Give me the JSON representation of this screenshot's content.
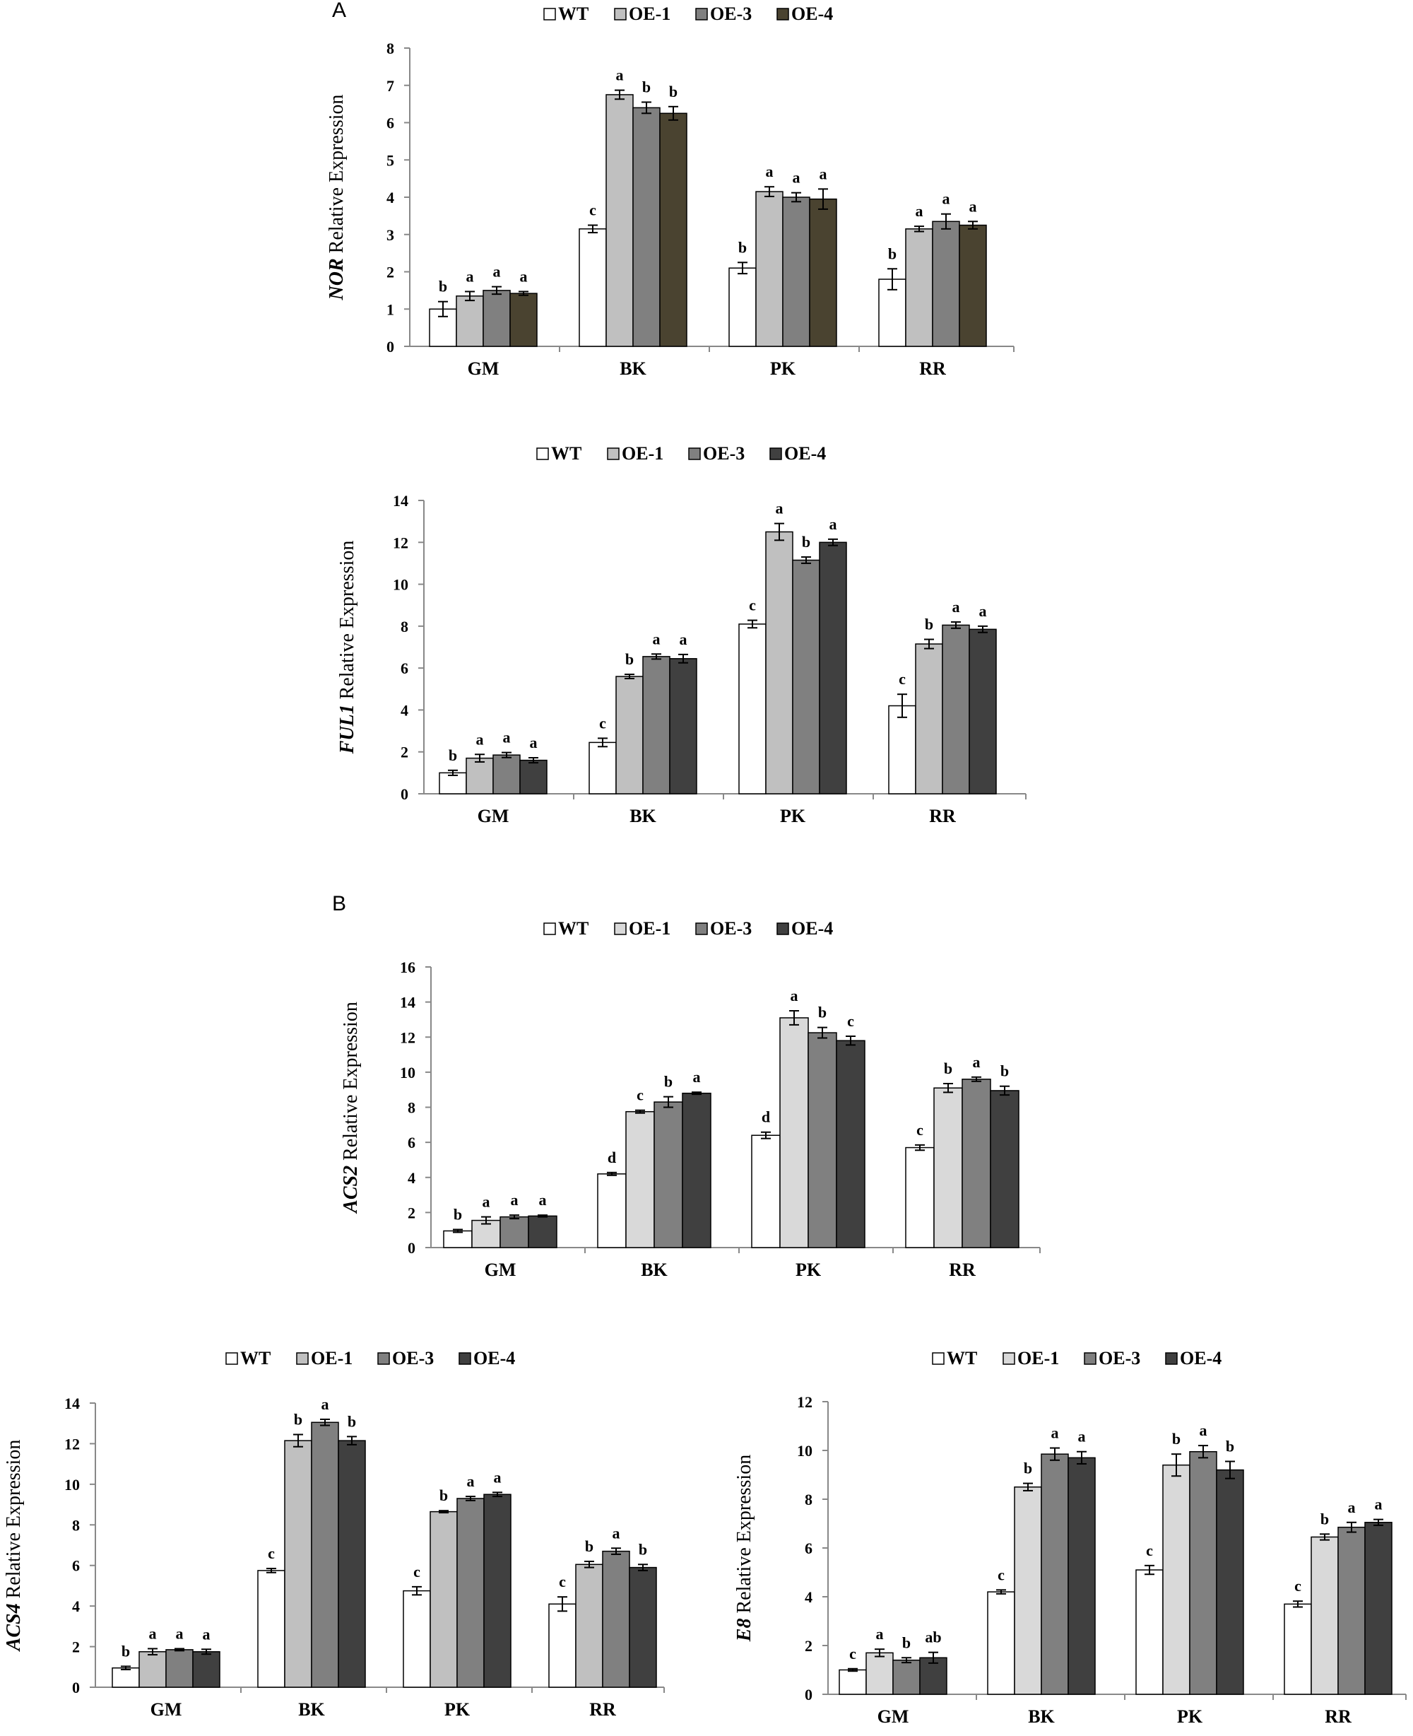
{
  "panel_labels": [
    "A",
    "B"
  ],
  "colors": {
    "WT": "#ffffff",
    "OE-1": "#c0c0c0",
    "OE-3": "#808080",
    "OE-4_dark_olive": "#4a4330",
    "OE-4": "#404040",
    "axis": "#888888"
  },
  "chart_data": [
    {
      "type": "bar",
      "gene": "NOR",
      "ylabel_suffix": " Relative Expression",
      "categories": [
        "GM",
        "BK",
        "PK",
        "RR"
      ],
      "legend": [
        "WT",
        "OE-1",
        "OE-3",
        "OE-4"
      ],
      "ylim": [
        0,
        8
      ],
      "yticks": [
        0,
        1,
        2,
        3,
        4,
        5,
        6,
        7,
        8
      ],
      "series": [
        {
          "name": "WT",
          "color": "#ffffff",
          "values": [
            1.0,
            3.15,
            2.1,
            1.8
          ],
          "errors": [
            0.2,
            0.1,
            0.15,
            0.28
          ],
          "letters": [
            "b",
            "c",
            "b",
            "b"
          ]
        },
        {
          "name": "OE-1",
          "color": "#c0c0c0",
          "values": [
            1.35,
            6.75,
            4.15,
            3.15
          ],
          "errors": [
            0.12,
            0.12,
            0.13,
            0.07
          ],
          "letters": [
            "a",
            "a",
            "a",
            "a"
          ]
        },
        {
          "name": "OE-3",
          "color": "#808080",
          "values": [
            1.5,
            6.4,
            4.0,
            3.35
          ],
          "errors": [
            0.1,
            0.15,
            0.12,
            0.2
          ],
          "letters": [
            "a",
            "b",
            "a",
            "a"
          ]
        },
        {
          "name": "OE-4",
          "color": "#4a4330",
          "values": [
            1.42,
            6.25,
            3.95,
            3.25
          ],
          "errors": [
            0.05,
            0.18,
            0.27,
            0.1
          ],
          "letters": [
            "a",
            "b",
            "a",
            "a"
          ]
        }
      ]
    },
    {
      "type": "bar",
      "gene": "FUL1",
      "ylabel_suffix": " Relative Expression",
      "categories": [
        "GM",
        "BK",
        "PK",
        "RR"
      ],
      "legend": [
        "WT",
        "OE-1",
        "OE-3",
        "OE-4"
      ],
      "ylim": [
        0,
        14
      ],
      "yticks": [
        0,
        2,
        4,
        6,
        8,
        10,
        12,
        14
      ],
      "series": [
        {
          "name": "WT",
          "color": "#ffffff",
          "values": [
            1.0,
            2.45,
            8.1,
            4.2
          ],
          "errors": [
            0.12,
            0.2,
            0.18,
            0.55
          ],
          "letters": [
            "b",
            "c",
            "c",
            "c"
          ]
        },
        {
          "name": "OE-1",
          "color": "#c0c0c0",
          "values": [
            1.7,
            5.6,
            12.5,
            7.15
          ],
          "errors": [
            0.18,
            0.1,
            0.4,
            0.22
          ],
          "letters": [
            "a",
            "b",
            "a",
            "b"
          ]
        },
        {
          "name": "OE-3",
          "color": "#808080",
          "values": [
            1.85,
            6.55,
            11.15,
            8.05
          ],
          "errors": [
            0.12,
            0.12,
            0.15,
            0.15
          ],
          "letters": [
            "a",
            "a",
            "b",
            "a"
          ]
        },
        {
          "name": "OE-4",
          "color": "#404040",
          "values": [
            1.6,
            6.45,
            12.0,
            7.85
          ],
          "errors": [
            0.12,
            0.2,
            0.15,
            0.15
          ],
          "letters": [
            "a",
            "a",
            "a",
            "a"
          ]
        }
      ]
    },
    {
      "type": "bar",
      "gene": "ACS2",
      "ylabel_suffix": " Relative Expression",
      "categories": [
        "GM",
        "BK",
        "PK",
        "RR"
      ],
      "legend": [
        "WT",
        "OE-1",
        "OE-3",
        "OE-4"
      ],
      "ylim": [
        0,
        16
      ],
      "yticks": [
        0,
        2,
        4,
        6,
        8,
        10,
        12,
        14,
        16
      ],
      "series": [
        {
          "name": "WT",
          "color": "#ffffff",
          "values": [
            0.95,
            4.2,
            6.4,
            5.7
          ],
          "errors": [
            0.08,
            0.08,
            0.18,
            0.15
          ],
          "letters": [
            "b",
            "d",
            "d",
            "c"
          ]
        },
        {
          "name": "OE-1",
          "color": "#d9d9d9",
          "values": [
            1.55,
            7.75,
            13.1,
            9.1
          ],
          "errors": [
            0.2,
            0.08,
            0.4,
            0.25
          ],
          "letters": [
            "a",
            "c",
            "a",
            "b"
          ]
        },
        {
          "name": "OE-3",
          "color": "#808080",
          "values": [
            1.75,
            8.3,
            12.25,
            9.6
          ],
          "errors": [
            0.1,
            0.3,
            0.3,
            0.12
          ],
          "letters": [
            "a",
            "b",
            "b",
            "a"
          ]
        },
        {
          "name": "OE-4",
          "color": "#404040",
          "values": [
            1.8,
            8.8,
            11.8,
            8.95
          ],
          "errors": [
            0.05,
            0.06,
            0.25,
            0.25
          ],
          "letters": [
            "a",
            "a",
            "c",
            "b"
          ]
        }
      ]
    },
    {
      "type": "bar",
      "gene": "ACS4",
      "ylabel_suffix": " Relative  Expression",
      "categories": [
        "GM",
        "BK",
        "PK",
        "RR"
      ],
      "legend": [
        "WT",
        "OE-1",
        "OE-3",
        "OE-4"
      ],
      "ylim": [
        0,
        14
      ],
      "yticks": [
        0,
        2,
        4,
        6,
        8,
        10,
        12,
        14
      ],
      "series": [
        {
          "name": "WT",
          "color": "#ffffff",
          "values": [
            0.95,
            5.75,
            4.75,
            4.1
          ],
          "errors": [
            0.08,
            0.1,
            0.2,
            0.35
          ],
          "letters": [
            "b",
            "c",
            "c",
            "c"
          ]
        },
        {
          "name": "OE-1",
          "color": "#c0c0c0",
          "values": [
            1.75,
            12.15,
            8.65,
            6.05
          ],
          "errors": [
            0.15,
            0.3,
            0.05,
            0.15
          ],
          "letters": [
            "a",
            "b",
            "b",
            "b"
          ]
        },
        {
          "name": "OE-3",
          "color": "#808080",
          "values": [
            1.85,
            13.05,
            9.3,
            6.7
          ],
          "errors": [
            0.05,
            0.15,
            0.1,
            0.15
          ],
          "letters": [
            "a",
            "a",
            "a",
            "a"
          ]
        },
        {
          "name": "OE-4",
          "color": "#404040",
          "values": [
            1.75,
            12.15,
            9.5,
            5.9
          ],
          "errors": [
            0.12,
            0.2,
            0.1,
            0.15
          ],
          "letters": [
            "a",
            "b",
            "a",
            "b"
          ]
        }
      ]
    },
    {
      "type": "bar",
      "gene": "E8",
      "ylabel_suffix": " Relative Expression",
      "categories": [
        "GM",
        "BK",
        "PK",
        "RR"
      ],
      "legend": [
        "WT",
        "OE-1",
        "OE-3",
        "OE-4"
      ],
      "ylim": [
        0,
        12
      ],
      "yticks": [
        0,
        2,
        4,
        6,
        8,
        10,
        12
      ],
      "series": [
        {
          "name": "WT",
          "color": "#ffffff",
          "values": [
            1.0,
            4.2,
            5.1,
            3.7
          ],
          "errors": [
            0.05,
            0.08,
            0.18,
            0.12
          ],
          "letters": [
            "c",
            "c",
            "c",
            "c"
          ]
        },
        {
          "name": "OE-1",
          "color": "#d9d9d9",
          "values": [
            1.7,
            8.5,
            9.4,
            6.45
          ],
          "errors": [
            0.15,
            0.15,
            0.45,
            0.12
          ],
          "letters": [
            "a",
            "b",
            "b",
            "b"
          ]
        },
        {
          "name": "OE-3",
          "color": "#808080",
          "values": [
            1.4,
            9.85,
            9.95,
            6.85
          ],
          "errors": [
            0.1,
            0.25,
            0.25,
            0.2
          ],
          "letters": [
            "b",
            "a",
            "a",
            "a"
          ]
        },
        {
          "name": "OE-4",
          "color": "#404040",
          "values": [
            1.5,
            9.7,
            9.2,
            7.05
          ],
          "errors": [
            0.22,
            0.25,
            0.35,
            0.12
          ],
          "letters": [
            "ab",
            "a",
            "b",
            "a"
          ]
        }
      ]
    }
  ]
}
